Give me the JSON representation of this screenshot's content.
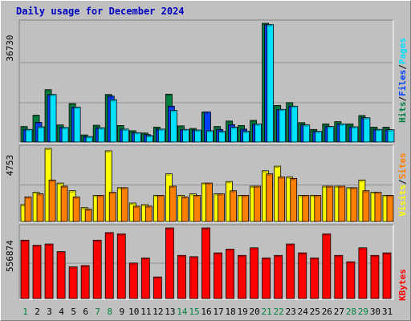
{
  "title": "Daily usage for December 2024",
  "colors": {
    "background": "#c0c0c0",
    "title": "#0000c0",
    "hits": "#008040",
    "files": "#0040ff",
    "pages": "#00e0ff",
    "visits": "#ffff00",
    "sites": "#ff8000",
    "kbytes": "#ff0000",
    "weekend_label": "#008040",
    "weekday_label": "#000000"
  },
  "chart_data": [
    {
      "type": "bar",
      "title": "Daily usage for December 2024",
      "categories": [
        "1",
        "2",
        "3",
        "4",
        "5",
        "6",
        "7",
        "8",
        "9",
        "10",
        "11",
        "12",
        "13",
        "14",
        "15",
        "16",
        "17",
        "18",
        "19",
        "20",
        "21",
        "22",
        "23",
        "24",
        "25",
        "26",
        "27",
        "28",
        "29",
        "30",
        "31"
      ],
      "weekend_days": [
        "1",
        "7",
        "8",
        "14",
        "15",
        "21",
        "22",
        "28",
        "29"
      ],
      "ymax_label": "36730",
      "ylim": [
        0,
        36730
      ],
      "grid": true,
      "series": [
        {
          "name": "Hits",
          "color": "#008040",
          "values": [
            4800,
            8300,
            16200,
            5300,
            11900,
            2200,
            5200,
            14700,
            5100,
            3500,
            2800,
            4600,
            14800,
            5000,
            4200,
            9300,
            4800,
            6500,
            5100,
            6700,
            36730,
            11300,
            12200,
            6000,
            3900,
            5600,
            6300,
            5600,
            8200,
            4600,
            4600
          ]
        },
        {
          "name": "Files",
          "color": "#0040ff",
          "values": [
            3900,
            6100,
            14700,
            4500,
            10800,
            1700,
            4400,
            14200,
            4000,
            2900,
            2300,
            4000,
            11100,
            3900,
            3700,
            9300,
            3900,
            5400,
            4000,
            5600,
            36300,
            10100,
            11100,
            5300,
            3300,
            4800,
            5600,
            4700,
            7500,
            3900,
            3800
          ]
        },
        {
          "name": "Pages",
          "color": "#00e0ff",
          "values": [
            3900,
            4700,
            14700,
            4500,
            10800,
            1700,
            4400,
            13100,
            4000,
            2900,
            2000,
            4000,
            9800,
            3900,
            3700,
            3500,
            3300,
            4600,
            3300,
            5600,
            36300,
            10100,
            11100,
            5300,
            3300,
            4800,
            5600,
            4700,
            7500,
            3900,
            3800
          ]
        }
      ]
    },
    {
      "type": "bar",
      "ymax_label": "4753",
      "ylim": [
        0,
        4753
      ],
      "grid": true,
      "series": [
        {
          "name": "Visits",
          "color": "#ffff00",
          "values": [
            1100,
            1900,
            4753,
            2500,
            2000,
            900,
            1700,
            4600,
            2200,
            1200,
            1100,
            1700,
            3100,
            1700,
            1800,
            2500,
            1800,
            2600,
            1700,
            2300,
            3300,
            3600,
            2900,
            1700,
            1700,
            2300,
            2300,
            2200,
            2700,
            1900,
            1700
          ]
        },
        {
          "name": "Sites",
          "color": "#ff8000",
          "values": [
            1600,
            1800,
            2700,
            2300,
            1600,
            800,
            1700,
            1900,
            2200,
            1000,
            1000,
            1700,
            2300,
            1600,
            1700,
            2500,
            1800,
            2000,
            1700,
            2300,
            3100,
            2900,
            2800,
            1700,
            1700,
            2300,
            2300,
            2200,
            2000,
            1900,
            1700
          ]
        }
      ]
    },
    {
      "type": "bar",
      "ymax_label": "556874",
      "ylim": [
        0,
        556874
      ],
      "grid": true,
      "series": [
        {
          "name": "KBytes",
          "color": "#ff0000",
          "values": [
            460000,
            420000,
            430000,
            370000,
            250000,
            260000,
            460000,
            520000,
            510000,
            280000,
            320000,
            170000,
            556874,
            340000,
            330000,
            556874,
            360000,
            390000,
            340000,
            400000,
            320000,
            340000,
            430000,
            360000,
            320000,
            510000,
            340000,
            290000,
            400000,
            340000,
            360000
          ]
        }
      ]
    }
  ],
  "legends": {
    "top": [
      "Hits",
      "/",
      "Files",
      "/",
      "Pages"
    ],
    "middle": [
      "Visits",
      "/",
      "Sites"
    ],
    "bottom": [
      "KBytes"
    ]
  }
}
